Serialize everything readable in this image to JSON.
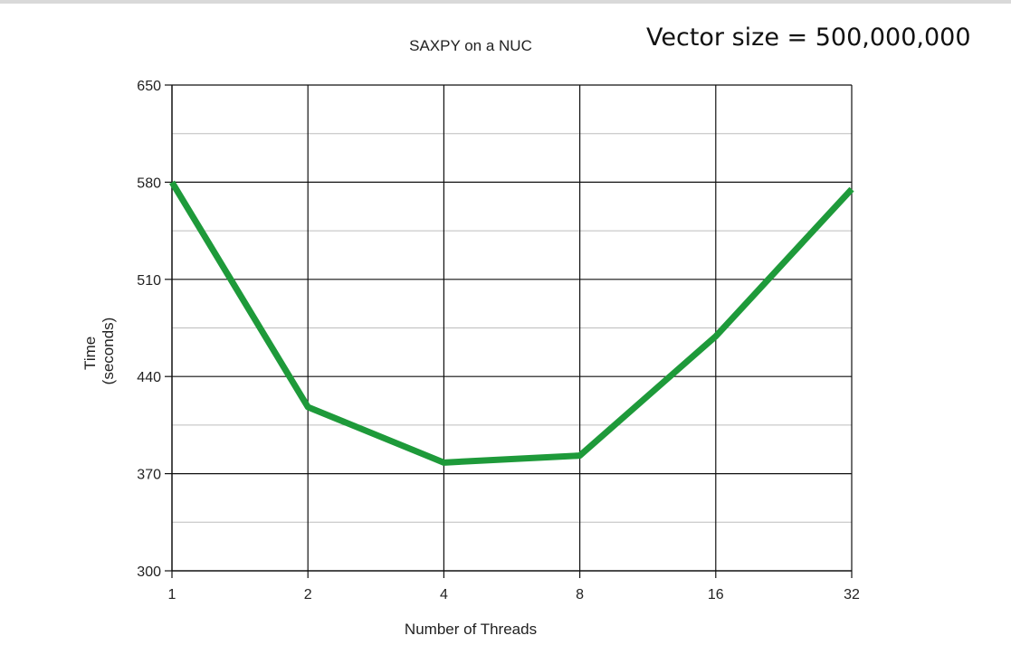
{
  "annotation": "Vector size = 500,000,000",
  "chart_data": {
    "type": "line",
    "title": "SAXPY on a NUC",
    "xlabel": "Number of Threads",
    "ylabel_line1": "Time",
    "ylabel_line2": "(seconds)",
    "categories": [
      "1",
      "2",
      "4",
      "8",
      "16",
      "32"
    ],
    "series": [
      {
        "values": [
          580,
          418,
          378,
          383,
          469,
          575
        ],
        "color": "#1e9a3a"
      }
    ],
    "ylim": [
      300,
      650
    ],
    "yticks": [
      300,
      370,
      440,
      510,
      580,
      650
    ],
    "grid": true,
    "minor_grid": true
  }
}
